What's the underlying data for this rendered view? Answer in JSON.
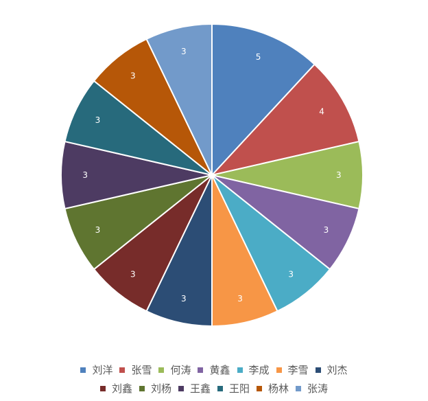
{
  "chart_data": {
    "type": "pie",
    "categories": [
      "刘洋",
      "张雪",
      "何涛",
      "黄鑫",
      "李成",
      "李雪",
      "刘杰",
      "刘鑫",
      "刘杨",
      "王鑫",
      "王阳",
      "杨林",
      "张涛"
    ],
    "values": [
      5,
      4,
      3,
      3,
      3,
      3,
      3,
      3,
      3,
      3,
      3,
      3,
      3
    ],
    "colors": [
      "#4F81BD",
      "#C0504D",
      "#9BBB59",
      "#8064A2",
      "#4BACC6",
      "#F79646",
      "#2C4D75",
      "#772C2A",
      "#5F7530",
      "#4D3B62",
      "#276A7C",
      "#B65708",
      "#729ACA"
    ],
    "data_labels": true,
    "legend": "bottom"
  }
}
